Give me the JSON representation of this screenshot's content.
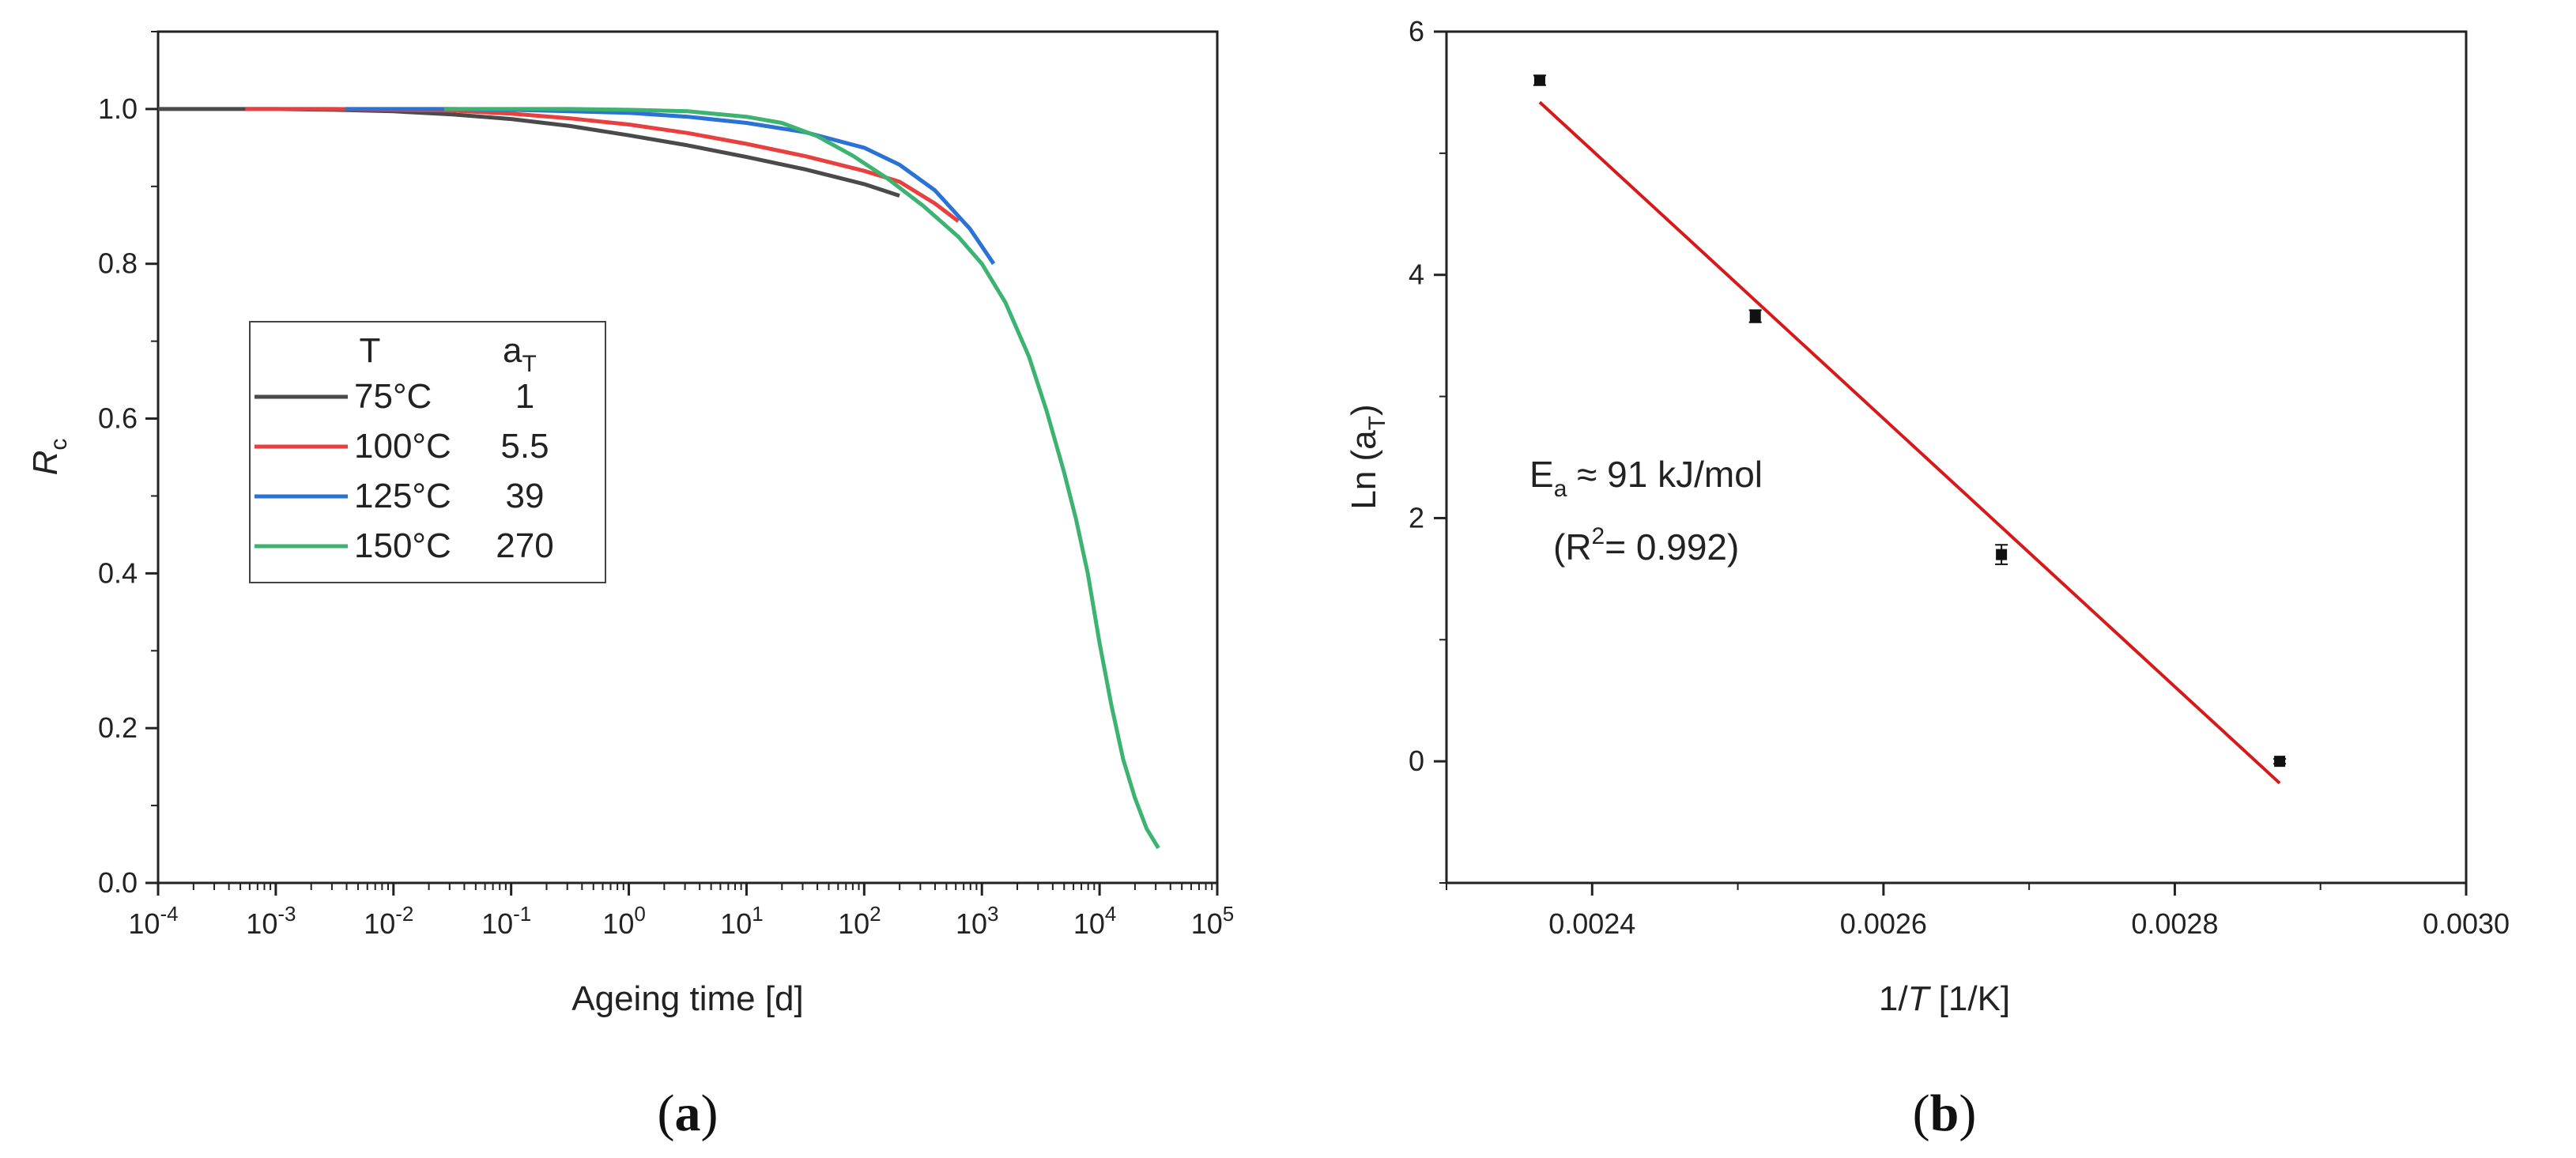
{
  "figure_labels": {
    "a_open": "(",
    "a_letter": "a",
    "a_close": ")",
    "b_open": "(",
    "b_letter": "b",
    "b_close": ")"
  },
  "chart_data": [
    {
      "id": "a",
      "type": "line",
      "xscale": "log",
      "xlabel": "Ageing time [d]",
      "ylabel_main": "R",
      "ylabel_sub": "c",
      "xlim_log10": [
        -4,
        5
      ],
      "ylim": [
        0.0,
        1.1
      ],
      "xticks": [
        {
          "base": "10",
          "exp": "-4"
        },
        {
          "base": "10",
          "exp": "-3"
        },
        {
          "base": "10",
          "exp": "-2"
        },
        {
          "base": "10",
          "exp": "-1"
        },
        {
          "base": "10",
          "exp": "0"
        },
        {
          "base": "10",
          "exp": "1"
        },
        {
          "base": "10",
          "exp": "2"
        },
        {
          "base": "10",
          "exp": "3"
        },
        {
          "base": "10",
          "exp": "4"
        },
        {
          "base": "10",
          "exp": "5"
        }
      ],
      "yticks": [
        "0.0",
        "0.2",
        "0.4",
        "0.6",
        "0.8",
        "1.0"
      ],
      "legend": {
        "position": "center-left",
        "header_t": "T",
        "header_a_main": "a",
        "header_a_sub": "T",
        "entries": [
          {
            "label": "75°C",
            "aT": "1",
            "color": "#4a4a4a"
          },
          {
            "label": "100°C",
            "aT": "5.5",
            "color": "#e8403e"
          },
          {
            "label": "125°C",
            "aT": "39",
            "color": "#2a72d6"
          },
          {
            "label": "150°C",
            "aT": "270",
            "color": "#3cb371"
          }
        ]
      },
      "series": [
        {
          "name": "75°C",
          "color": "#4a4a4a",
          "points": [
            [
              -4,
              1.0
            ],
            [
              -3,
              1.0
            ],
            [
              -2.5,
              0.999
            ],
            [
              -2,
              0.997
            ],
            [
              -1.5,
              0.993
            ],
            [
              -1,
              0.987
            ],
            [
              -0.5,
              0.978
            ],
            [
              0,
              0.966
            ],
            [
              0.5,
              0.953
            ],
            [
              1,
              0.938
            ],
            [
              1.5,
              0.922
            ],
            [
              2,
              0.903
            ],
            [
              2.3,
              0.888
            ]
          ]
        },
        {
          "name": "100°C",
          "color": "#e8403e",
          "points": [
            [
              -3.26,
              1.0
            ],
            [
              -2.5,
              1.0
            ],
            [
              -2,
              0.999
            ],
            [
              -1.5,
              0.998
            ],
            [
              -1,
              0.994
            ],
            [
              -0.5,
              0.988
            ],
            [
              0,
              0.98
            ],
            [
              0.5,
              0.969
            ],
            [
              1,
              0.955
            ],
            [
              1.5,
              0.939
            ],
            [
              2,
              0.92
            ],
            [
              2.3,
              0.906
            ],
            [
              2.6,
              0.878
            ],
            [
              2.8,
              0.855
            ]
          ]
        },
        {
          "name": "125°C",
          "color": "#2a72d6",
          "points": [
            [
              -2.41,
              1.0
            ],
            [
              -1.5,
              1.0
            ],
            [
              -1,
              0.999
            ],
            [
              -0.5,
              0.997
            ],
            [
              0,
              0.995
            ],
            [
              0.5,
              0.99
            ],
            [
              1,
              0.982
            ],
            [
              1.5,
              0.97
            ],
            [
              2,
              0.95
            ],
            [
              2.3,
              0.928
            ],
            [
              2.6,
              0.895
            ],
            [
              2.9,
              0.845
            ],
            [
              3.1,
              0.8
            ]
          ]
        },
        {
          "name": "150°C",
          "color": "#3cb371",
          "points": [
            [
              -1.57,
              1.0
            ],
            [
              -1,
              1.0
            ],
            [
              -0.5,
              1.0
            ],
            [
              0,
              0.999
            ],
            [
              0.5,
              0.997
            ],
            [
              1,
              0.99
            ],
            [
              1.3,
              0.982
            ],
            [
              1.6,
              0.965
            ],
            [
              1.9,
              0.94
            ],
            [
              2.2,
              0.91
            ],
            [
              2.5,
              0.875
            ],
            [
              2.8,
              0.835
            ],
            [
              3,
              0.8
            ],
            [
              3.2,
              0.75
            ],
            [
              3.4,
              0.68
            ],
            [
              3.55,
              0.61
            ],
            [
              3.7,
              0.53
            ],
            [
              3.8,
              0.47
            ],
            [
              3.9,
              0.4
            ],
            [
              4,
              0.31
            ],
            [
              4.1,
              0.23
            ],
            [
              4.2,
              0.16
            ],
            [
              4.3,
              0.11
            ],
            [
              4.4,
              0.07
            ],
            [
              4.5,
              0.045
            ]
          ]
        }
      ]
    },
    {
      "id": "b",
      "type": "scatter",
      "xlabel_pre": "1/",
      "xlabel_italic": "T",
      "xlabel_post": " [1/K]",
      "ylabel_main": "Ln (a",
      "ylabel_sub": "T",
      "ylabel_close": ")",
      "xlim": [
        0.0023,
        0.003
      ],
      "ylim": [
        -1,
        6
      ],
      "xticks": [
        "0.0024",
        "0.0026",
        "0.0028",
        "0.0030"
      ],
      "xtick_values": [
        0.0024,
        0.0026,
        0.0028,
        0.003
      ],
      "yticks": [
        "0",
        "2",
        "4",
        "6"
      ],
      "ytick_values": [
        0,
        2,
        4,
        6
      ],
      "points": [
        {
          "x": 0.002364,
          "y": 5.6,
          "err": 0.04
        },
        {
          "x": 0.002512,
          "y": 3.66,
          "err": 0.05
        },
        {
          "x": 0.002681,
          "y": 1.7,
          "err": 0.08
        },
        {
          "x": 0.002872,
          "y": 0.0,
          "err": 0.02
        }
      ],
      "fit": {
        "color": "#d7191c",
        "x0": 0.002364,
        "y0": 5.42,
        "x1": 0.002872,
        "y1": -0.18
      },
      "annotation": {
        "ea_main": "E",
        "ea_sub": "a",
        "ea_rest": " ≈ 91 kJ/mol",
        "r2_open": "(R",
        "r2_sup": "2",
        "r2_rest": "= 0.992)"
      }
    }
  ]
}
